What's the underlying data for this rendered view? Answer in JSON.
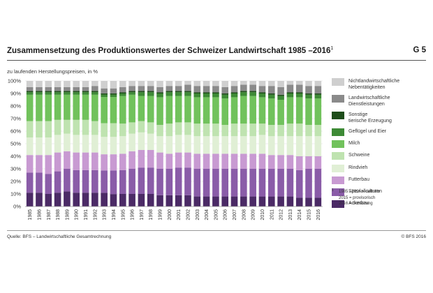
{
  "header": {
    "title": "Zusammensetzung des Produktionswertes der Schweizer Landwirtschaft 1985 –2016",
    "title_mark": "1",
    "code": "G 5",
    "subtitle": "zu laufenden Herstellungspreisen, in %"
  },
  "footer": {
    "source": "Quelle: BFS – Landwirtschaftliche Gesamtrechnung",
    "copyright": "© BFS 2016"
  },
  "footnote": {
    "mark": "1",
    "lines": [
      "1985 –2014 = definitiv",
      "2015 = provisorisch",
      "2016 = Schätzung"
    ]
  },
  "chart_data": {
    "type": "bar",
    "stacked": true,
    "percent": true,
    "categories": [
      "1985",
      "1986",
      "1987",
      "1988",
      "1989",
      "1990",
      "1991",
      "1992",
      "1993",
      "1994",
      "1995",
      "1996",
      "1997",
      "1998",
      "1999",
      "2000",
      "2001",
      "2002",
      "2003",
      "2004",
      "2005",
      "2006",
      "2007",
      "2008",
      "2009",
      "2010",
      "2011",
      "2012",
      "2013",
      "2014",
      "2015",
      "2016"
    ],
    "y_ticks": [
      "0%",
      "10%",
      "20%",
      "30%",
      "40%",
      "50%",
      "60%",
      "70%",
      "80%",
      "90%",
      "100%"
    ],
    "ylim": [
      0,
      100
    ],
    "grid": true,
    "legend_position": "right",
    "series": [
      {
        "name": "Ackerbau",
        "color": "#4b2a66",
        "values": [
          11,
          11,
          10,
          11,
          12,
          11,
          11,
          11,
          11,
          10,
          10,
          10,
          10,
          10,
          9,
          9,
          9,
          9,
          8,
          8,
          8,
          8,
          8,
          8,
          8,
          8,
          8,
          8,
          8,
          7,
          7,
          7
        ]
      },
      {
        "name": "Spezialkulturen",
        "color": "#8a5ca8",
        "values": [
          16,
          16,
          16,
          17,
          18,
          18,
          18,
          18,
          18,
          19,
          19,
          20,
          21,
          21,
          21,
          21,
          22,
          22,
          22,
          22,
          22,
          22,
          22,
          22,
          22,
          22,
          22,
          22,
          22,
          22,
          23,
          23
        ]
      },
      {
        "name": "Futterbau",
        "color": "#c89ad2",
        "values": [
          14,
          14,
          15,
          15,
          14,
          14,
          14,
          14,
          13,
          13,
          13,
          14,
          14,
          14,
          13,
          12,
          12,
          12,
          12,
          12,
          12,
          12,
          12,
          12,
          12,
          12,
          11,
          11,
          11,
          11,
          10,
          10
        ]
      },
      {
        "name": "Rindvieh",
        "color": "#e0efd5",
        "values": [
          14,
          14,
          14,
          14,
          14,
          14,
          14,
          14,
          14,
          14,
          14,
          14,
          14,
          13,
          13,
          14,
          14,
          14,
          14,
          14,
          14,
          14,
          14,
          14,
          14,
          15,
          15,
          15,
          15,
          16,
          16,
          16
        ]
      },
      {
        "name": "Schweine",
        "color": "#bfe3b0",
        "values": [
          13,
          13,
          13,
          12,
          11,
          12,
          12,
          11,
          11,
          11,
          10,
          9,
          9,
          9,
          9,
          10,
          10,
          10,
          10,
          10,
          10,
          9,
          10,
          10,
          10,
          9,
          9,
          9,
          10,
          10,
          9,
          9
        ]
      },
      {
        "name": "Milch",
        "color": "#71c25c",
        "values": [
          21,
          21,
          21,
          20,
          20,
          20,
          20,
          21,
          21,
          21,
          22,
          22,
          20,
          21,
          22,
          22,
          21,
          21,
          21,
          21,
          21,
          21,
          21,
          22,
          22,
          21,
          21,
          20,
          21,
          21,
          21,
          21
        ]
      },
      {
        "name": "Geflügel und Eier",
        "color": "#3d8a35",
        "values": [
          2,
          2,
          2,
          2,
          2,
          2,
          2,
          2,
          2,
          2,
          2,
          2,
          3,
          3,
          3,
          3,
          3,
          3,
          3,
          3,
          3,
          3,
          3,
          3,
          3,
          3,
          3,
          3,
          3,
          3,
          3,
          3
        ]
      },
      {
        "name": "Sonstige tierische Erzeugung",
        "color": "#1e4d1a",
        "values": [
          1,
          1,
          1,
          1,
          1,
          1,
          1,
          1,
          1,
          1,
          1,
          1,
          1,
          1,
          1,
          1,
          1,
          1,
          1,
          1,
          1,
          1,
          1,
          1,
          1,
          1,
          1,
          1,
          1,
          1,
          1,
          1
        ]
      },
      {
        "name": "Landwirtschaftliche Dienstleistungen",
        "color": "#8a8a8a",
        "values": [
          3,
          3,
          3,
          3,
          3,
          3,
          3,
          4,
          4,
          4,
          4,
          4,
          4,
          4,
          4,
          4,
          4,
          5,
          5,
          5,
          5,
          5,
          5,
          5,
          5,
          5,
          6,
          6,
          6,
          6,
          6,
          6
        ]
      },
      {
        "name": "Nichtlandwirtschaftliche Nebentätigkeiten",
        "color": "#cfcfcf",
        "values": [
          5,
          5,
          5,
          5,
          5,
          5,
          5,
          4,
          6,
          6,
          5,
          4,
          4,
          4,
          5,
          4,
          4,
          3,
          4,
          4,
          4,
          5,
          4,
          3,
          3,
          4,
          4,
          5,
          3,
          3,
          4,
          4
        ]
      }
    ]
  }
}
